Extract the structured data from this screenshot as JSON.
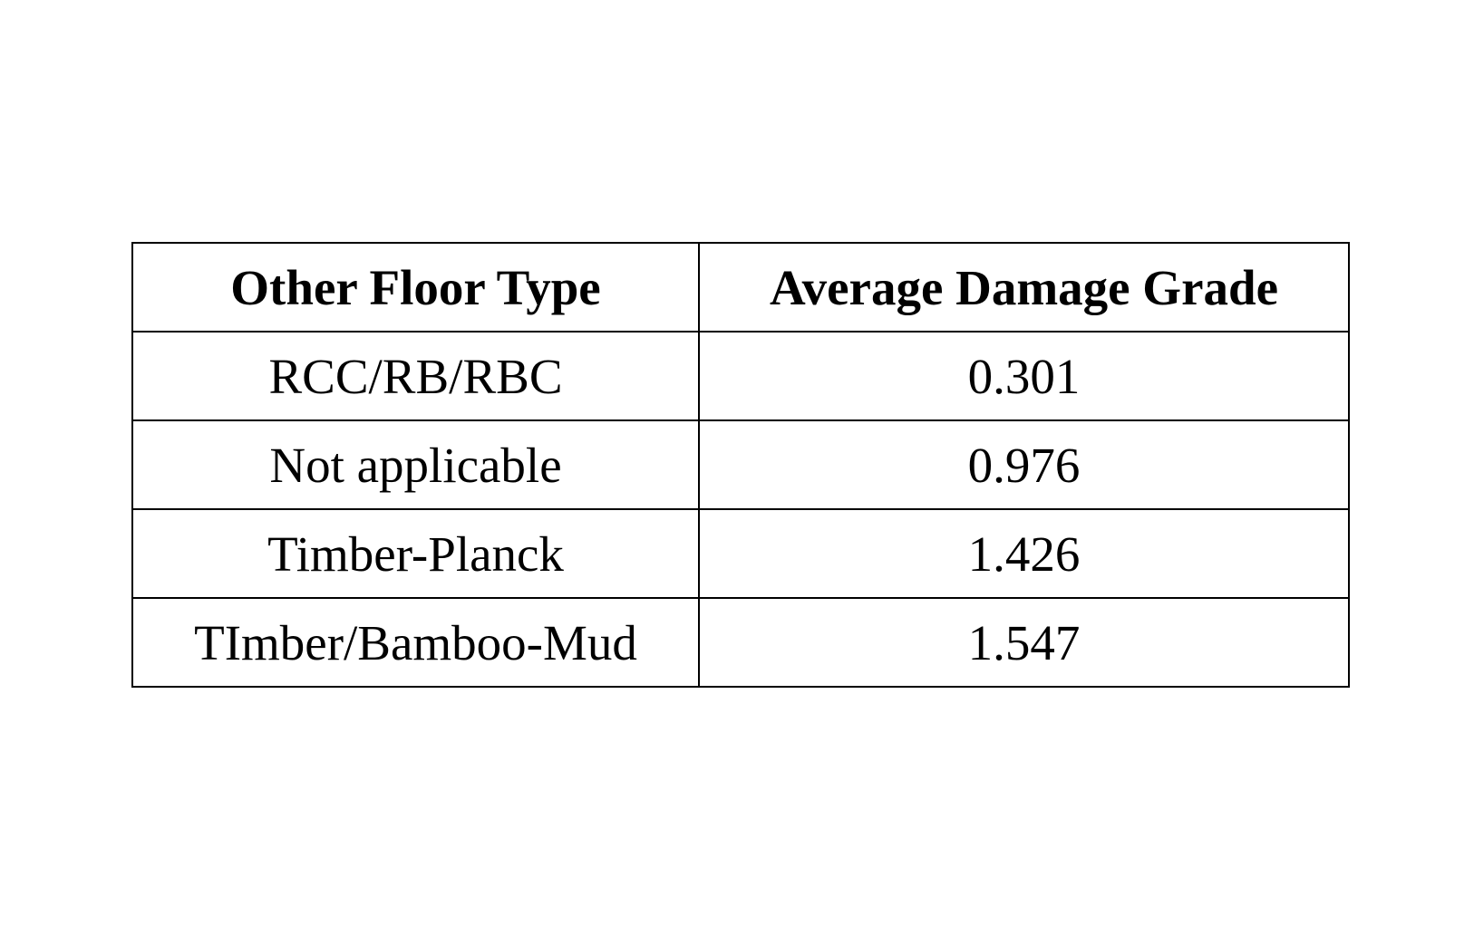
{
  "table": {
    "headers": [
      "Other Floor Type",
      "Average Damage Grade"
    ],
    "rows": [
      [
        "RCC/RB/RBC",
        "0.301"
      ],
      [
        "Not applicable",
        "0.976"
      ],
      [
        "Timber-Planck",
        "1.426"
      ],
      [
        "TImber/Bamboo-Mud",
        "1.547"
      ]
    ]
  }
}
